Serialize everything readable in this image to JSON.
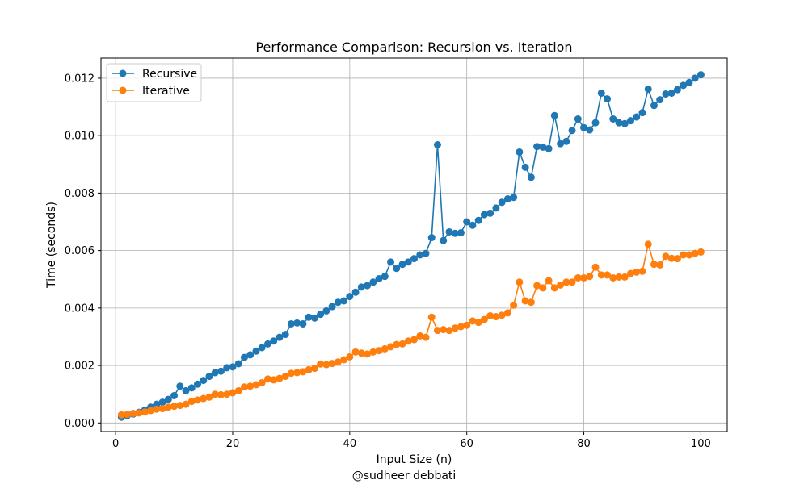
{
  "chart_data": {
    "type": "line",
    "title": "Performance Comparison: Recursion vs. Iteration",
    "xlabel": "Input Size (n)",
    "ylabel": "Time (seconds)",
    "xlim": [
      -2.5,
      104.5
    ],
    "ylim": [
      -0.0003,
      0.0127
    ],
    "xticks": [
      0,
      20,
      40,
      60,
      80,
      100
    ],
    "yticks": [
      0.0,
      0.002,
      0.004,
      0.006,
      0.008,
      0.01,
      0.012
    ],
    "ytick_labels": [
      "0.000",
      "0.002",
      "0.004",
      "0.006",
      "0.008",
      "0.010",
      "0.012"
    ],
    "grid": true,
    "legend_position": "top-left",
    "marker": "circle",
    "x": [
      1,
      2,
      3,
      4,
      5,
      6,
      7,
      8,
      9,
      10,
      11,
      12,
      13,
      14,
      15,
      16,
      17,
      18,
      19,
      20,
      21,
      22,
      23,
      24,
      25,
      26,
      27,
      28,
      29,
      30,
      31,
      32,
      33,
      34,
      35,
      36,
      37,
      38,
      39,
      40,
      41,
      42,
      43,
      44,
      45,
      46,
      47,
      48,
      49,
      50,
      51,
      52,
      53,
      54,
      55,
      56,
      57,
      58,
      59,
      60,
      61,
      62,
      63,
      64,
      65,
      66,
      67,
      68,
      69,
      70,
      71,
      72,
      73,
      74,
      75,
      76,
      77,
      78,
      79,
      80,
      81,
      82,
      83,
      84,
      85,
      86,
      87,
      88,
      89,
      90,
      91,
      92,
      93,
      94,
      95,
      96,
      97,
      98,
      99,
      100
    ],
    "series": [
      {
        "name": "Recursive",
        "color": "#1f77b4",
        "values": [
          0.0002,
          0.00026,
          0.00031,
          0.00037,
          0.00045,
          0.00055,
          0.00065,
          0.00072,
          0.00082,
          0.00095,
          0.00128,
          0.00112,
          0.00122,
          0.00135,
          0.00148,
          0.00162,
          0.00175,
          0.0018,
          0.00192,
          0.00195,
          0.00206,
          0.00228,
          0.00237,
          0.0025,
          0.00262,
          0.00275,
          0.00285,
          0.00298,
          0.00308,
          0.00345,
          0.00348,
          0.00345,
          0.00368,
          0.00365,
          0.00378,
          0.0039,
          0.00405,
          0.0042,
          0.00425,
          0.0044,
          0.00455,
          0.00473,
          0.00478,
          0.0049,
          0.00502,
          0.0051,
          0.0056,
          0.00538,
          0.00552,
          0.0056,
          0.00572,
          0.00585,
          0.0059,
          0.00645,
          0.00968,
          0.00635,
          0.00665,
          0.0066,
          0.00662,
          0.007,
          0.00688,
          0.00705,
          0.00725,
          0.0073,
          0.00748,
          0.00768,
          0.0078,
          0.00785,
          0.00943,
          0.0089,
          0.00855,
          0.00962,
          0.0096,
          0.00955,
          0.0107,
          0.00972,
          0.0098,
          0.01018,
          0.01058,
          0.01028,
          0.0102,
          0.01045,
          0.01148,
          0.01128,
          0.01058,
          0.01045,
          0.01042,
          0.01052,
          0.01065,
          0.0108,
          0.01162,
          0.01105,
          0.01125,
          0.01145,
          0.01148,
          0.0116,
          0.01175,
          0.01185,
          0.012,
          0.01212
        ]
      },
      {
        "name": "Iterative",
        "color": "#ff7f0e",
        "values": [
          0.00028,
          0.0003,
          0.00033,
          0.00035,
          0.00038,
          0.00043,
          0.00048,
          0.0005,
          0.00055,
          0.00058,
          0.00061,
          0.00065,
          0.00075,
          0.0008,
          0.00085,
          0.0009,
          0.001,
          0.00098,
          0.001,
          0.00105,
          0.00112,
          0.00125,
          0.00128,
          0.00133,
          0.0014,
          0.00153,
          0.0015,
          0.00155,
          0.00162,
          0.00173,
          0.00175,
          0.00178,
          0.00185,
          0.0019,
          0.00205,
          0.00203,
          0.00207,
          0.00212,
          0.0022,
          0.0023,
          0.00247,
          0.00243,
          0.0024,
          0.00247,
          0.00252,
          0.00258,
          0.00265,
          0.00273,
          0.00275,
          0.00285,
          0.0029,
          0.00303,
          0.00298,
          0.00368,
          0.00322,
          0.00325,
          0.00322,
          0.0033,
          0.00335,
          0.0034,
          0.00355,
          0.0035,
          0.0036,
          0.00373,
          0.0037,
          0.00375,
          0.00383,
          0.0041,
          0.0049,
          0.00425,
          0.0042,
          0.00478,
          0.0047,
          0.00495,
          0.0047,
          0.0048,
          0.0049,
          0.0049,
          0.00505,
          0.00505,
          0.0051,
          0.00542,
          0.00515,
          0.00515,
          0.00505,
          0.00508,
          0.00508,
          0.0052,
          0.00525,
          0.00528,
          0.00622,
          0.00552,
          0.0055,
          0.0058,
          0.00573,
          0.00572,
          0.00585,
          0.00585,
          0.0059,
          0.00595
        ]
      }
    ]
  },
  "footer": {
    "credit": "@sudheer debbati"
  }
}
